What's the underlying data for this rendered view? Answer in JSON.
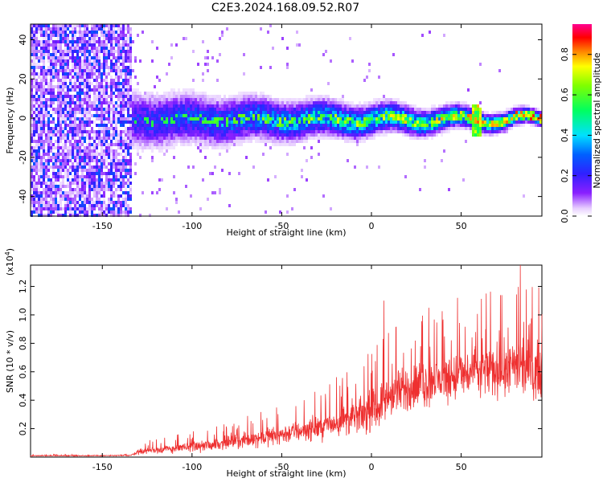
{
  "title": "C2E3.2024.168.09.52.R07",
  "colors": {
    "snr_line": "#ee3030",
    "axis": "#000000"
  },
  "chart_data": [
    {
      "type": "heatmap",
      "xlabel": "Height of straight line (km)",
      "ylabel": "Frequency (Hz)",
      "xlim": [
        -190,
        95
      ],
      "ylim": [
        -50,
        48
      ],
      "x_ticks": [
        -150,
        -100,
        -50,
        0,
        50
      ],
      "y_ticks": [
        -40,
        -20,
        0,
        20,
        40
      ],
      "colorbar": {
        "label": "Normalized spectral amplitude",
        "range": [
          0,
          0.95
        ],
        "ticks": [
          0.0,
          0.2,
          0.4,
          0.6,
          0.8
        ],
        "colormap": "rainbow (white→purple→blue→cyan→green→yellow→red→magenta)"
      },
      "features": {
        "noise_region_end_km": -134,
        "signal_center_hz": 0,
        "band_halfwidth_hz_start": 12,
        "band_halfwidth_hz_end": 3,
        "peak_amplitude_near_km": 58
      },
      "grid": false
    },
    {
      "type": "line",
      "xlabel": "Height of straight line (km)",
      "ylabel": "SNR (10 * v/v)",
      "y_multiplier": "(x10",
      "y_multiplier_exp": "4",
      "y_multiplier_close": ")",
      "xlim": [
        -190,
        95
      ],
      "ylim": [
        0,
        1.35
      ],
      "x_ticks": [
        -150,
        -100,
        -50,
        0,
        50
      ],
      "y_ticks": [
        0.2,
        0.4,
        0.6,
        0.8,
        1.0,
        1.2
      ],
      "y_tick_labels": [
        "0.2",
        "0.4",
        "0.6",
        "0.8",
        "1.0",
        "1.2"
      ],
      "series": [
        {
          "envelope_x": [
            -190,
            -150,
            -134,
            -130,
            -100,
            -75,
            -50,
            -25,
            0,
            10,
            15,
            20,
            40,
            60,
            80,
            95
          ],
          "envelope_mean": [
            0.01,
            0.01,
            0.012,
            0.04,
            0.07,
            0.11,
            0.16,
            0.22,
            0.32,
            0.42,
            0.45,
            0.48,
            0.55,
            0.6,
            0.62,
            0.6
          ],
          "envelope_spread": [
            0.005,
            0.005,
            0.006,
            0.03,
            0.05,
            0.07,
            0.1,
            0.13,
            0.2,
            0.22,
            0.23,
            0.24,
            0.25,
            0.27,
            0.28,
            0.27
          ],
          "spikes": [
            {
              "x": 7,
              "y": 1.1
            },
            {
              "x": 32,
              "y": 1.05
            },
            {
              "x": 48,
              "y": 1.12
            },
            {
              "x": 64,
              "y": 1.15
            },
            {
              "x": 83,
              "y": 1.38
            },
            {
              "x": 93,
              "y": 0.8
            }
          ]
        }
      ],
      "grid": false
    }
  ]
}
